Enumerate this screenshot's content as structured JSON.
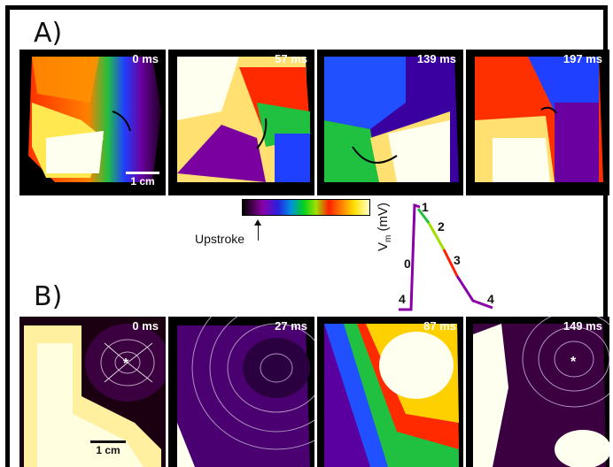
{
  "figure": {
    "panel_a_label": "A)",
    "panel_b_label": "B)",
    "panel_a_times": [
      "0 ms",
      "57 ms",
      "139 ms",
      "197 ms"
    ],
    "panel_b_times": [
      "0 ms",
      "27 ms",
      "87 ms",
      "149 ms"
    ],
    "scale_a": "1 cm",
    "scale_b": "1 cm",
    "colorbar_label": "Upstroke",
    "ap_ylabel_main": "V",
    "ap_ylabel_sub": "m",
    "ap_ylabel_rest": " (mV)",
    "ap_phases": [
      "0",
      "1",
      "2",
      "3",
      "4",
      "4"
    ],
    "colors": {
      "background": "#000000",
      "rest": "#2a0030",
      "upstroke": "#8a00a8",
      "depol_high": "#ffffc8"
    }
  }
}
